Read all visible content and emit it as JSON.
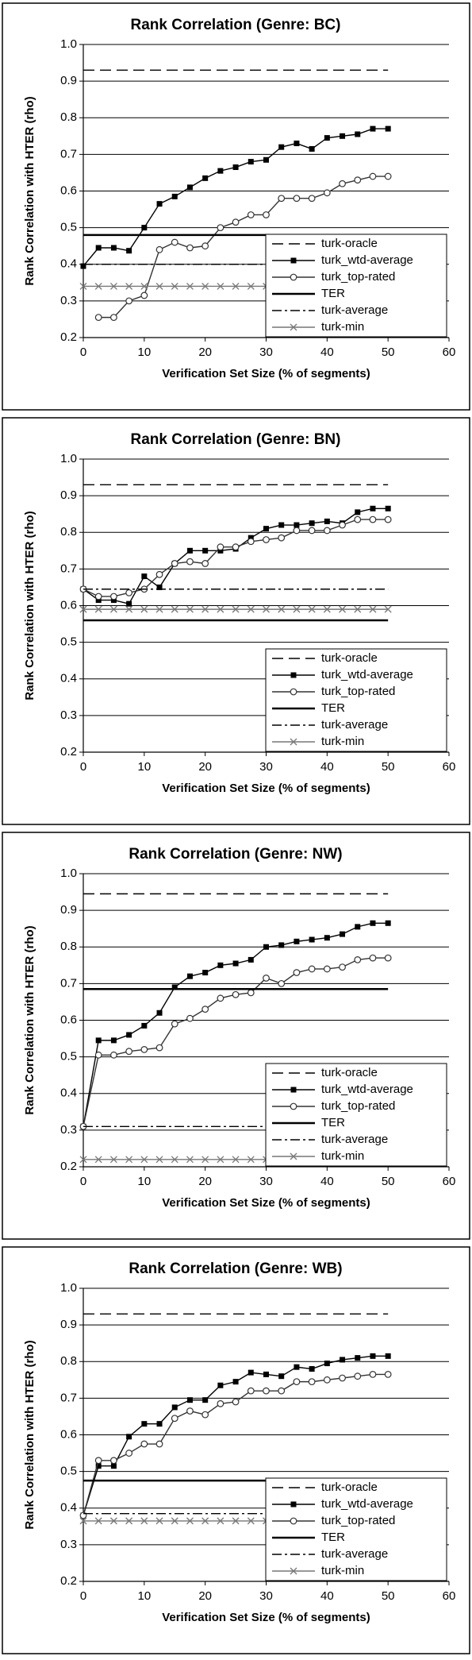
{
  "chart_data": [
    {
      "type": "line",
      "title": "Rank Correlation (Genre: BC)",
      "x_label": "Verification Set Size (% of segments)",
      "y_label": "Rank Correlation with HTER (rho)",
      "x": [
        0,
        2.5,
        5,
        7.5,
        10,
        12.5,
        15,
        17.5,
        20,
        22.5,
        25,
        27.5,
        30,
        32.5,
        35,
        37.5,
        40,
        42.5,
        45,
        47.5,
        50
      ],
      "xlim": [
        0,
        60
      ],
      "xticks": [
        0,
        10,
        20,
        30,
        40,
        50,
        60
      ],
      "ylim": [
        0.2,
        1
      ],
      "yticks": [
        0.2,
        0.3,
        0.4,
        0.5,
        0.6,
        0.7,
        0.8,
        0.9,
        {
          "value": 1,
          "label": "1.0"
        }
      ],
      "grid": true,
      "legend": "lower-right",
      "series": [
        {
          "name": "turk-oracle",
          "color": "#000000",
          "dash": "dashed",
          "marker": "none",
          "values": [
            0.93,
            0.93,
            0.93,
            0.93,
            0.93,
            0.93,
            0.93,
            0.93,
            0.93,
            0.93,
            0.93,
            0.93,
            0.93,
            0.93,
            0.93,
            0.93,
            0.93,
            0.93,
            0.93,
            0.93,
            0.93
          ]
        },
        {
          "name": "turk_wtd-average",
          "color": "#000000",
          "dash": "solid",
          "marker": "square",
          "values": [
            0.395,
            0.445,
            0.445,
            0.437,
            0.5,
            0.565,
            0.585,
            0.61,
            0.635,
            0.655,
            0.665,
            0.68,
            0.685,
            0.72,
            0.73,
            0.715,
            0.745,
            0.75,
            0.755,
            0.77,
            0.77
          ]
        },
        {
          "name": "turk_top-rated",
          "color": "#333333",
          "dash": "solid",
          "marker": "circle",
          "values": [
            null,
            0.255,
            0.255,
            0.3,
            0.315,
            0.44,
            0.46,
            0.445,
            0.45,
            0.5,
            0.515,
            0.535,
            0.535,
            0.58,
            0.58,
            0.58,
            0.595,
            0.62,
            0.63,
            0.64,
            0.64
          ]
        },
        {
          "name": "TER",
          "color": "#000000",
          "dash": "solid",
          "marker": "none",
          "width": 2.5,
          "values": [
            0.48,
            0.48,
            0.48,
            0.48,
            0.48,
            0.48,
            0.48,
            0.48,
            0.48,
            0.48,
            0.48,
            0.48,
            0.48,
            0.48,
            0.48,
            0.48,
            0.48,
            0.48,
            0.48,
            0.48,
            0.48
          ]
        },
        {
          "name": "turk-average",
          "color": "#000000",
          "dash": "dashdot",
          "marker": "none",
          "values": [
            0.4,
            0.4,
            0.4,
            0.4,
            0.4,
            0.4,
            0.4,
            0.4,
            0.4,
            0.4,
            0.4,
            0.4,
            0.4,
            0.4,
            0.4,
            0.4,
            0.4,
            0.4,
            0.4,
            0.4,
            0.4
          ]
        },
        {
          "name": "turk-min",
          "color": "#777777",
          "dash": "solid",
          "marker": "x",
          "values": [
            0.34,
            0.34,
            0.34,
            0.34,
            0.34,
            0.34,
            0.34,
            0.34,
            0.34,
            0.34,
            0.34,
            0.34,
            0.34,
            0.34,
            0.34,
            0.34,
            0.34,
            0.34,
            0.34,
            0.34,
            0.34
          ]
        }
      ]
    },
    {
      "type": "line",
      "title": "Rank Correlation (Genre: BN)",
      "x_label": "Verification Set Size (% of segments)",
      "y_label": "Rank Correlation with HTER (rho)",
      "x": [
        0,
        2.5,
        5,
        7.5,
        10,
        12.5,
        15,
        17.5,
        20,
        22.5,
        25,
        27.5,
        30,
        32.5,
        35,
        37.5,
        40,
        42.5,
        45,
        47.5,
        50
      ],
      "xlim": [
        0,
        60
      ],
      "xticks": [
        0,
        10,
        20,
        30,
        40,
        50,
        60
      ],
      "ylim": [
        0.2,
        1
      ],
      "yticks": [
        0.2,
        0.3,
        0.4,
        0.5,
        0.6,
        0.7,
        0.8,
        0.9,
        {
          "value": 1,
          "label": "1.0"
        }
      ],
      "grid": true,
      "legend": "lower-right",
      "series": [
        {
          "name": "turk-oracle",
          "color": "#000000",
          "dash": "dashed",
          "marker": "none",
          "values": [
            0.93,
            0.93,
            0.93,
            0.93,
            0.93,
            0.93,
            0.93,
            0.93,
            0.93,
            0.93,
            0.93,
            0.93,
            0.93,
            0.93,
            0.93,
            0.93,
            0.93,
            0.93,
            0.93,
            0.93,
            0.93
          ]
        },
        {
          "name": "turk_wtd-average",
          "color": "#000000",
          "dash": "solid",
          "marker": "square",
          "values": [
            0.645,
            0.615,
            0.615,
            0.605,
            0.68,
            0.65,
            0.715,
            0.75,
            0.75,
            0.75,
            0.755,
            0.785,
            0.81,
            0.82,
            0.82,
            0.825,
            0.83,
            0.825,
            0.855,
            0.865,
            0.865
          ]
        },
        {
          "name": "turk_top-rated",
          "color": "#333333",
          "dash": "solid",
          "marker": "circle",
          "values": [
            0.645,
            0.625,
            0.625,
            0.635,
            0.645,
            0.685,
            0.715,
            0.72,
            0.715,
            0.76,
            0.76,
            0.775,
            0.78,
            0.785,
            0.805,
            0.805,
            0.805,
            0.82,
            0.835,
            0.835,
            0.835
          ]
        },
        {
          "name": "TER",
          "color": "#000000",
          "dash": "solid",
          "marker": "none",
          "width": 2.5,
          "values": [
            0.56,
            0.56,
            0.56,
            0.56,
            0.56,
            0.56,
            0.56,
            0.56,
            0.56,
            0.56,
            0.56,
            0.56,
            0.56,
            0.56,
            0.56,
            0.56,
            0.56,
            0.56,
            0.56,
            0.56,
            0.56
          ]
        },
        {
          "name": "turk-average",
          "color": "#000000",
          "dash": "dashdot",
          "marker": "none",
          "values": [
            0.645,
            0.645,
            0.645,
            0.645,
            0.645,
            0.645,
            0.645,
            0.645,
            0.645,
            0.645,
            0.645,
            0.645,
            0.645,
            0.645,
            0.645,
            0.645,
            0.645,
            0.645,
            0.645,
            0.645,
            0.645
          ]
        },
        {
          "name": "turk-min",
          "color": "#777777",
          "dash": "solid",
          "marker": "x",
          "values": [
            0.59,
            0.59,
            0.59,
            0.59,
            0.59,
            0.59,
            0.59,
            0.59,
            0.59,
            0.59,
            0.59,
            0.59,
            0.59,
            0.59,
            0.59,
            0.59,
            0.59,
            0.59,
            0.59,
            0.59,
            0.59
          ]
        }
      ]
    },
    {
      "type": "line",
      "title": "Rank Correlation (Genre: NW)",
      "x_label": "Verification Set Size (% of segments)",
      "y_label": "Rank Correlation with HTER (rho)",
      "x": [
        0,
        2.5,
        5,
        7.5,
        10,
        12.5,
        15,
        17.5,
        20,
        22.5,
        25,
        27.5,
        30,
        32.5,
        35,
        37.5,
        40,
        42.5,
        45,
        47.5,
        50
      ],
      "xlim": [
        0,
        60
      ],
      "xticks": [
        0,
        10,
        20,
        30,
        40,
        50,
        60
      ],
      "ylim": [
        0.2,
        1
      ],
      "yticks": [
        0.2,
        0.3,
        0.4,
        0.5,
        0.6,
        0.7,
        0.8,
        0.9,
        {
          "value": 1,
          "label": "1.0"
        }
      ],
      "grid": true,
      "legend": "lower-right",
      "series": [
        {
          "name": "turk-oracle",
          "color": "#000000",
          "dash": "dashed",
          "marker": "none",
          "values": [
            0.945,
            0.945,
            0.945,
            0.945,
            0.945,
            0.945,
            0.945,
            0.945,
            0.945,
            0.945,
            0.945,
            0.945,
            0.945,
            0.945,
            0.945,
            0.945,
            0.945,
            0.945,
            0.945,
            0.945,
            0.945
          ]
        },
        {
          "name": "turk_wtd-average",
          "color": "#000000",
          "dash": "solid",
          "marker": "square",
          "values": [
            0.31,
            0.545,
            0.545,
            0.56,
            0.585,
            0.62,
            0.69,
            0.72,
            0.73,
            0.75,
            0.755,
            0.765,
            0.8,
            0.805,
            0.815,
            0.82,
            0.825,
            0.835,
            0.855,
            0.865,
            0.865
          ]
        },
        {
          "name": "turk_top-rated",
          "color": "#333333",
          "dash": "solid",
          "marker": "circle",
          "values": [
            0.31,
            0.505,
            0.505,
            0.515,
            0.52,
            0.525,
            0.59,
            0.605,
            0.63,
            0.66,
            0.67,
            0.675,
            0.715,
            0.7,
            0.73,
            0.74,
            0.74,
            0.745,
            0.765,
            0.77,
            0.77
          ]
        },
        {
          "name": "TER",
          "color": "#000000",
          "dash": "solid",
          "marker": "none",
          "width": 2.5,
          "values": [
            0.685,
            0.685,
            0.685,
            0.685,
            0.685,
            0.685,
            0.685,
            0.685,
            0.685,
            0.685,
            0.685,
            0.685,
            0.685,
            0.685,
            0.685,
            0.685,
            0.685,
            0.685,
            0.685,
            0.685,
            0.685
          ]
        },
        {
          "name": "turk-average",
          "color": "#000000",
          "dash": "dashdot",
          "marker": "none",
          "values": [
            0.31,
            0.31,
            0.31,
            0.31,
            0.31,
            0.31,
            0.31,
            0.31,
            0.31,
            0.31,
            0.31,
            0.31,
            0.31,
            0.31,
            0.31,
            0.31,
            0.31,
            0.31,
            0.31,
            0.31,
            0.31
          ]
        },
        {
          "name": "turk-min",
          "color": "#777777",
          "dash": "solid",
          "marker": "x",
          "values": [
            0.22,
            0.22,
            0.22,
            0.22,
            0.22,
            0.22,
            0.22,
            0.22,
            0.22,
            0.22,
            0.22,
            0.22,
            0.22,
            0.22,
            0.22,
            0.22,
            0.22,
            0.22,
            0.22,
            0.22,
            0.22
          ]
        }
      ]
    },
    {
      "type": "line",
      "title": "Rank Correlation (Genre: WB)",
      "x_label": "Verification Set Size (% of segments)",
      "y_label": "Rank Correlation with HTER (rho)",
      "x": [
        0,
        2.5,
        5,
        7.5,
        10,
        12.5,
        15,
        17.5,
        20,
        22.5,
        25,
        27.5,
        30,
        32.5,
        35,
        37.5,
        40,
        42.5,
        45,
        47.5,
        50
      ],
      "xlim": [
        0,
        60
      ],
      "xticks": [
        0,
        10,
        20,
        30,
        40,
        50,
        60
      ],
      "ylim": [
        0.2,
        1
      ],
      "yticks": [
        0.2,
        0.3,
        0.4,
        0.5,
        0.6,
        0.7,
        0.8,
        0.9,
        {
          "value": 1,
          "label": "1.0"
        }
      ],
      "grid": true,
      "legend": "lower-right",
      "series": [
        {
          "name": "turk-oracle",
          "color": "#000000",
          "dash": "dashed",
          "marker": "none",
          "values": [
            0.93,
            0.93,
            0.93,
            0.93,
            0.93,
            0.93,
            0.93,
            0.93,
            0.93,
            0.93,
            0.93,
            0.93,
            0.93,
            0.93,
            0.93,
            0.93,
            0.93,
            0.93,
            0.93,
            0.93,
            0.93
          ]
        },
        {
          "name": "turk_wtd-average",
          "color": "#000000",
          "dash": "solid",
          "marker": "square",
          "values": [
            0.38,
            0.515,
            0.515,
            0.595,
            0.63,
            0.63,
            0.675,
            0.695,
            0.695,
            0.735,
            0.745,
            0.77,
            0.765,
            0.76,
            0.785,
            0.78,
            0.795,
            0.805,
            0.81,
            0.815,
            0.815
          ]
        },
        {
          "name": "turk_top-rated",
          "color": "#333333",
          "dash": "solid",
          "marker": "circle",
          "values": [
            0.38,
            0.53,
            0.53,
            0.55,
            0.575,
            0.575,
            0.645,
            0.665,
            0.655,
            0.685,
            0.69,
            0.72,
            0.72,
            0.72,
            0.745,
            0.745,
            0.75,
            0.755,
            0.76,
            0.765,
            0.765
          ]
        },
        {
          "name": "TER",
          "color": "#000000",
          "dash": "solid",
          "marker": "none",
          "width": 2.5,
          "values": [
            0.475,
            0.475,
            0.475,
            0.475,
            0.475,
            0.475,
            0.475,
            0.475,
            0.475,
            0.475,
            0.475,
            0.475,
            0.475,
            0.475,
            0.475,
            0.475,
            0.475,
            0.475,
            0.475,
            0.475,
            0.475
          ]
        },
        {
          "name": "turk-average",
          "color": "#000000",
          "dash": "dashdot",
          "marker": "none",
          "values": [
            0.385,
            0.385,
            0.385,
            0.385,
            0.385,
            0.385,
            0.385,
            0.385,
            0.385,
            0.385,
            0.385,
            0.385,
            0.385,
            0.385,
            0.385,
            0.385,
            0.385,
            0.385,
            0.385,
            0.385,
            0.385
          ]
        },
        {
          "name": "turk-min",
          "color": "#777777",
          "dash": "solid",
          "marker": "x",
          "values": [
            0.365,
            0.365,
            0.365,
            0.365,
            0.365,
            0.365,
            0.365,
            0.365,
            0.365,
            0.365,
            0.365,
            0.365,
            0.365,
            0.365,
            0.365,
            0.365,
            0.365,
            0.365,
            0.365,
            0.365,
            0.365
          ]
        }
      ]
    }
  ]
}
